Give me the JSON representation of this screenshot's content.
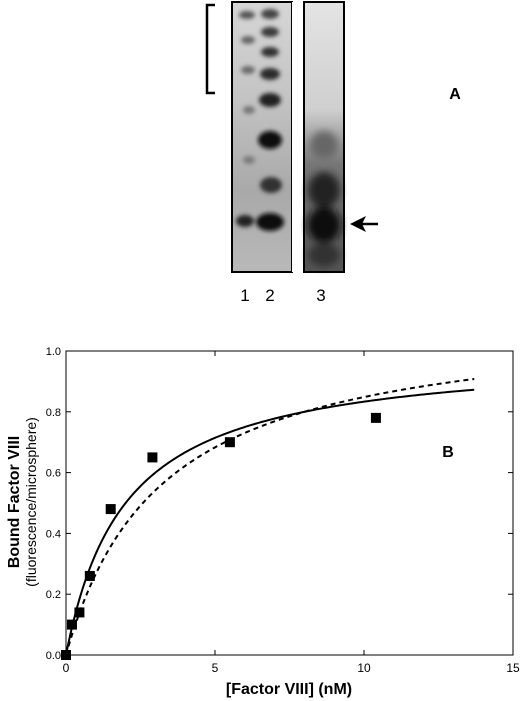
{
  "panel_a": {
    "label": "A",
    "lane_labels": [
      "1",
      "2",
      "3"
    ]
  },
  "chart_data": {
    "type": "scatter",
    "panel_label": "B",
    "xlabel": "[Factor VIII] (nM)",
    "ylabel": "Bound Factor VIII",
    "ylabel_sub": "(fluorescence/microsphere)",
    "xlim": [
      0,
      15
    ],
    "ylim": [
      0,
      1.0
    ],
    "x_ticks": [
      0,
      5,
      10,
      15
    ],
    "x_tick_labels": [
      "0",
      "5",
      "10",
      "15"
    ],
    "y_ticks": [
      0,
      0.2,
      0.4,
      0.6,
      0.8,
      1.0
    ],
    "y_tick_labels": [
      "0.0",
      "0.2",
      "0.4",
      "0.6",
      "0.8",
      "1.0"
    ],
    "grid": false,
    "points": {
      "x": [
        0,
        0.2,
        0.45,
        0.8,
        1.5,
        2.9,
        5.5,
        10.4
      ],
      "y": [
        0.0,
        0.1,
        0.14,
        0.26,
        0.48,
        0.65,
        0.7,
        0.78
      ]
    },
    "series": [
      {
        "style": "solid",
        "bmax": 1.0,
        "kd": 2.0,
        "x": [
          0,
          0.5,
          1,
          1.5,
          2,
          3,
          4,
          5,
          6,
          8,
          10,
          12,
          13.7
        ],
        "y": [
          0,
          0.2,
          0.333,
          0.429,
          0.5,
          0.6,
          0.667,
          0.714,
          0.75,
          0.8,
          0.833,
          0.857,
          0.873
        ]
      },
      {
        "style": "dashed",
        "bmax": 1.12,
        "kd": 3.2,
        "x": [
          0,
          0.5,
          1,
          1.5,
          2,
          3,
          4,
          5,
          6,
          8,
          10,
          12,
          13.7
        ],
        "y": [
          0,
          0.151,
          0.267,
          0.357,
          0.431,
          0.542,
          0.622,
          0.683,
          0.73,
          0.8,
          0.848,
          0.882,
          0.905
        ]
      }
    ]
  }
}
